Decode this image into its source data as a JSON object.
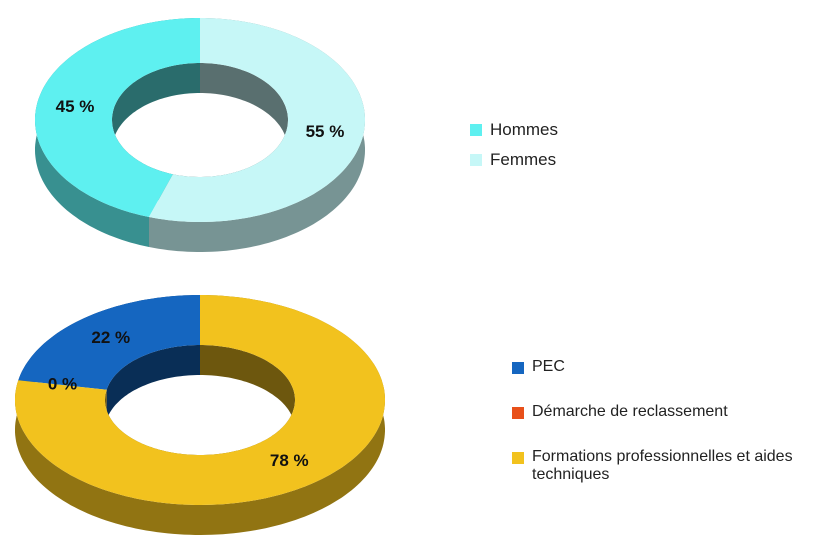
{
  "chart_data": [
    {
      "type": "pie",
      "categories": [
        "Hommes",
        "Femmes"
      ],
      "values": [
        45,
        55
      ],
      "value_labels": [
        "45 %",
        "55 %"
      ],
      "colors": [
        "#5ef0f0",
        "#c6f7f7"
      ]
    },
    {
      "type": "pie",
      "categories": [
        "PEC",
        "Démarche de reclassement",
        "Formations professionnelles et aides techniques"
      ],
      "values": [
        22,
        0,
        78
      ],
      "value_labels": [
        "22 %",
        "0 %",
        "78 %"
      ],
      "colors": [
        "#1566c0",
        "#e8501a",
        "#f2c21e"
      ]
    }
  ]
}
